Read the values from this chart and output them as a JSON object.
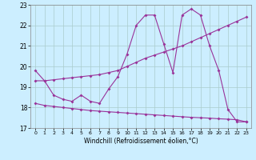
{
  "bg_color": "#cceeff",
  "grid_color": "#aacccc",
  "line_color": "#993399",
  "xlim": [
    -0.5,
    23.5
  ],
  "ylim": [
    17,
    23
  ],
  "yticks": [
    17,
    18,
    19,
    20,
    21,
    22,
    23
  ],
  "xticks": [
    0,
    1,
    2,
    3,
    4,
    5,
    6,
    7,
    8,
    9,
    10,
    11,
    12,
    13,
    14,
    15,
    16,
    17,
    18,
    19,
    20,
    21,
    22,
    23
  ],
  "xlabel": "Windchill (Refroidissement éolien,°C)",
  "s1x": [
    0,
    1,
    2,
    3,
    4,
    5,
    6,
    7,
    8,
    9,
    10,
    11,
    12,
    13,
    14,
    15,
    16,
    17,
    18,
    19,
    20,
    21,
    22,
    23
  ],
  "s1y": [
    19.8,
    19.3,
    18.6,
    18.4,
    18.3,
    18.6,
    18.3,
    18.2,
    18.9,
    19.5,
    20.6,
    22.0,
    22.5,
    22.5,
    21.1,
    19.7,
    22.5,
    22.8,
    22.5,
    21.0,
    19.8,
    17.9,
    17.3,
    17.3
  ],
  "s2x": [
    0,
    1,
    2,
    3,
    4,
    5,
    6,
    7,
    8,
    9,
    10,
    11,
    12,
    13,
    14,
    15,
    16,
    17,
    18,
    19,
    20,
    21,
    22,
    23
  ],
  "s2y": [
    19.3,
    19.3,
    19.35,
    19.4,
    19.45,
    19.5,
    19.55,
    19.6,
    19.7,
    19.8,
    20.0,
    20.2,
    20.4,
    20.55,
    20.7,
    20.85,
    21.0,
    21.2,
    21.4,
    21.6,
    21.8,
    22.0,
    22.2,
    22.4
  ],
  "s3x": [
    0,
    1,
    2,
    3,
    4,
    5,
    6,
    7,
    8,
    9,
    10,
    11,
    12,
    13,
    14,
    15,
    16,
    17,
    18,
    19,
    20,
    21,
    22,
    23
  ],
  "s3y": [
    18.2,
    18.1,
    18.05,
    18.0,
    17.95,
    17.9,
    17.85,
    17.82,
    17.79,
    17.76,
    17.73,
    17.7,
    17.67,
    17.64,
    17.61,
    17.58,
    17.55,
    17.52,
    17.5,
    17.48,
    17.45,
    17.43,
    17.4,
    17.3
  ]
}
